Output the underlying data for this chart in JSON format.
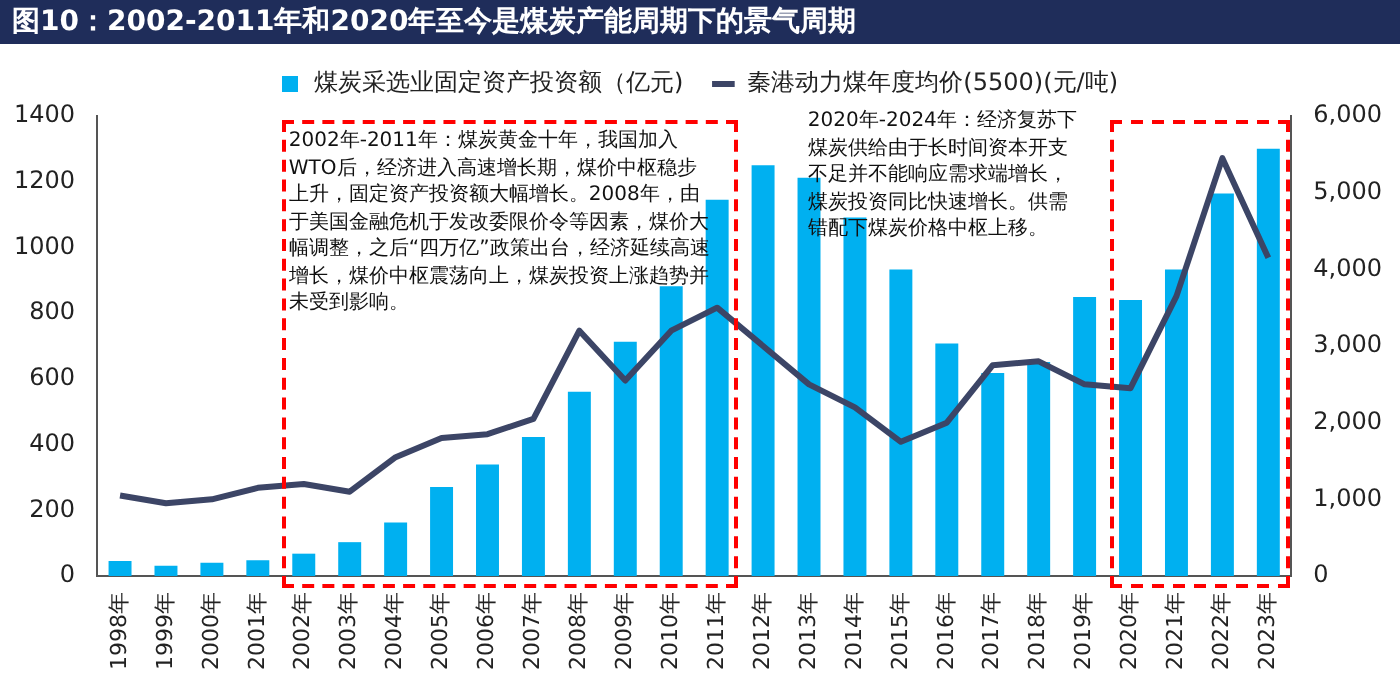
{
  "chart_data": {
    "type": "bar",
    "title": "图10：2002-2011年和2020年至今是煤炭产能周期下的景气周期",
    "categories": [
      "1998年",
      "1999年",
      "2000年",
      "2001年",
      "2002年",
      "2003年",
      "2004年",
      "2005年",
      "2006年",
      "2007年",
      "2008年",
      "2009年",
      "2010年",
      "2011年",
      "2012年",
      "2013年",
      "2014年",
      "2015年",
      "2016年",
      "2017年",
      "2018年",
      "2019年",
      "2020年",
      "2021年",
      "2022年",
      "2023年"
    ],
    "series": [
      {
        "name": "煤炭采选业固定资产投资额（亿元)",
        "color": "#00b0f0",
        "values": [
          46,
          31,
          40,
          48,
          68,
          103,
          163,
          271,
          339,
          423,
          561,
          713,
          882,
          1145,
          1250,
          1212,
          1091,
          933,
          708,
          618,
          651,
          849,
          840,
          933,
          1164,
          1300
        ]
      },
      {
        "name": "秦港动力煤年度均价(5500)(元/吨)",
        "type": "line",
        "axis": "y2",
        "color": "#3c4566",
        "values": [
          1050,
          950,
          1000,
          1150,
          1200,
          1100,
          1550,
          1800,
          1850,
          2050,
          3200,
          2550,
          3200,
          3500,
          3000,
          2500,
          2200,
          1750,
          2000,
          2750,
          2800,
          2500,
          2450,
          3650,
          5450,
          4150
        ]
      }
    ],
    "ylim": [
      0,
      1400
    ],
    "yticks": [
      0,
      200,
      400,
      600,
      800,
      1000,
      1200,
      1400
    ],
    "y2lim": [
      0,
      6000
    ],
    "y2ticks": [
      {
        "value": 0,
        "label": "0"
      },
      {
        "value": 1000,
        "label": "1,000"
      },
      {
        "value": 2000,
        "label": "2,000"
      },
      {
        "value": 3000,
        "label": "3,000"
      },
      {
        "value": 4000,
        "label": "4,000"
      },
      {
        "value": 5000,
        "label": "5,000"
      },
      {
        "value": 6000,
        "label": "6,000"
      }
    ],
    "annotations": [
      "2002年-2011年：煤炭黄金十年，我国加入WTO后，经济进入高速增长期，煤价中枢稳步上升，固定资产投资额大幅增长。2008年，由于美国金融危机于发改委限价令等因素，煤价大幅调整，之后“四万亿”政策出台，经济延续高速增长，煤价中枢震荡向上，煤炭投资上涨趋势并未受到影响。",
      "2020年-2024年：经济复苏下煤炭供给由于长时间资本开支不足并不能响应需求端增长，煤炭投资同比快速增长。供需错配下煤炭价格中枢上移。"
    ],
    "grid": false,
    "legend": "top",
    "marker": "none",
    "line_style": "solid"
  }
}
